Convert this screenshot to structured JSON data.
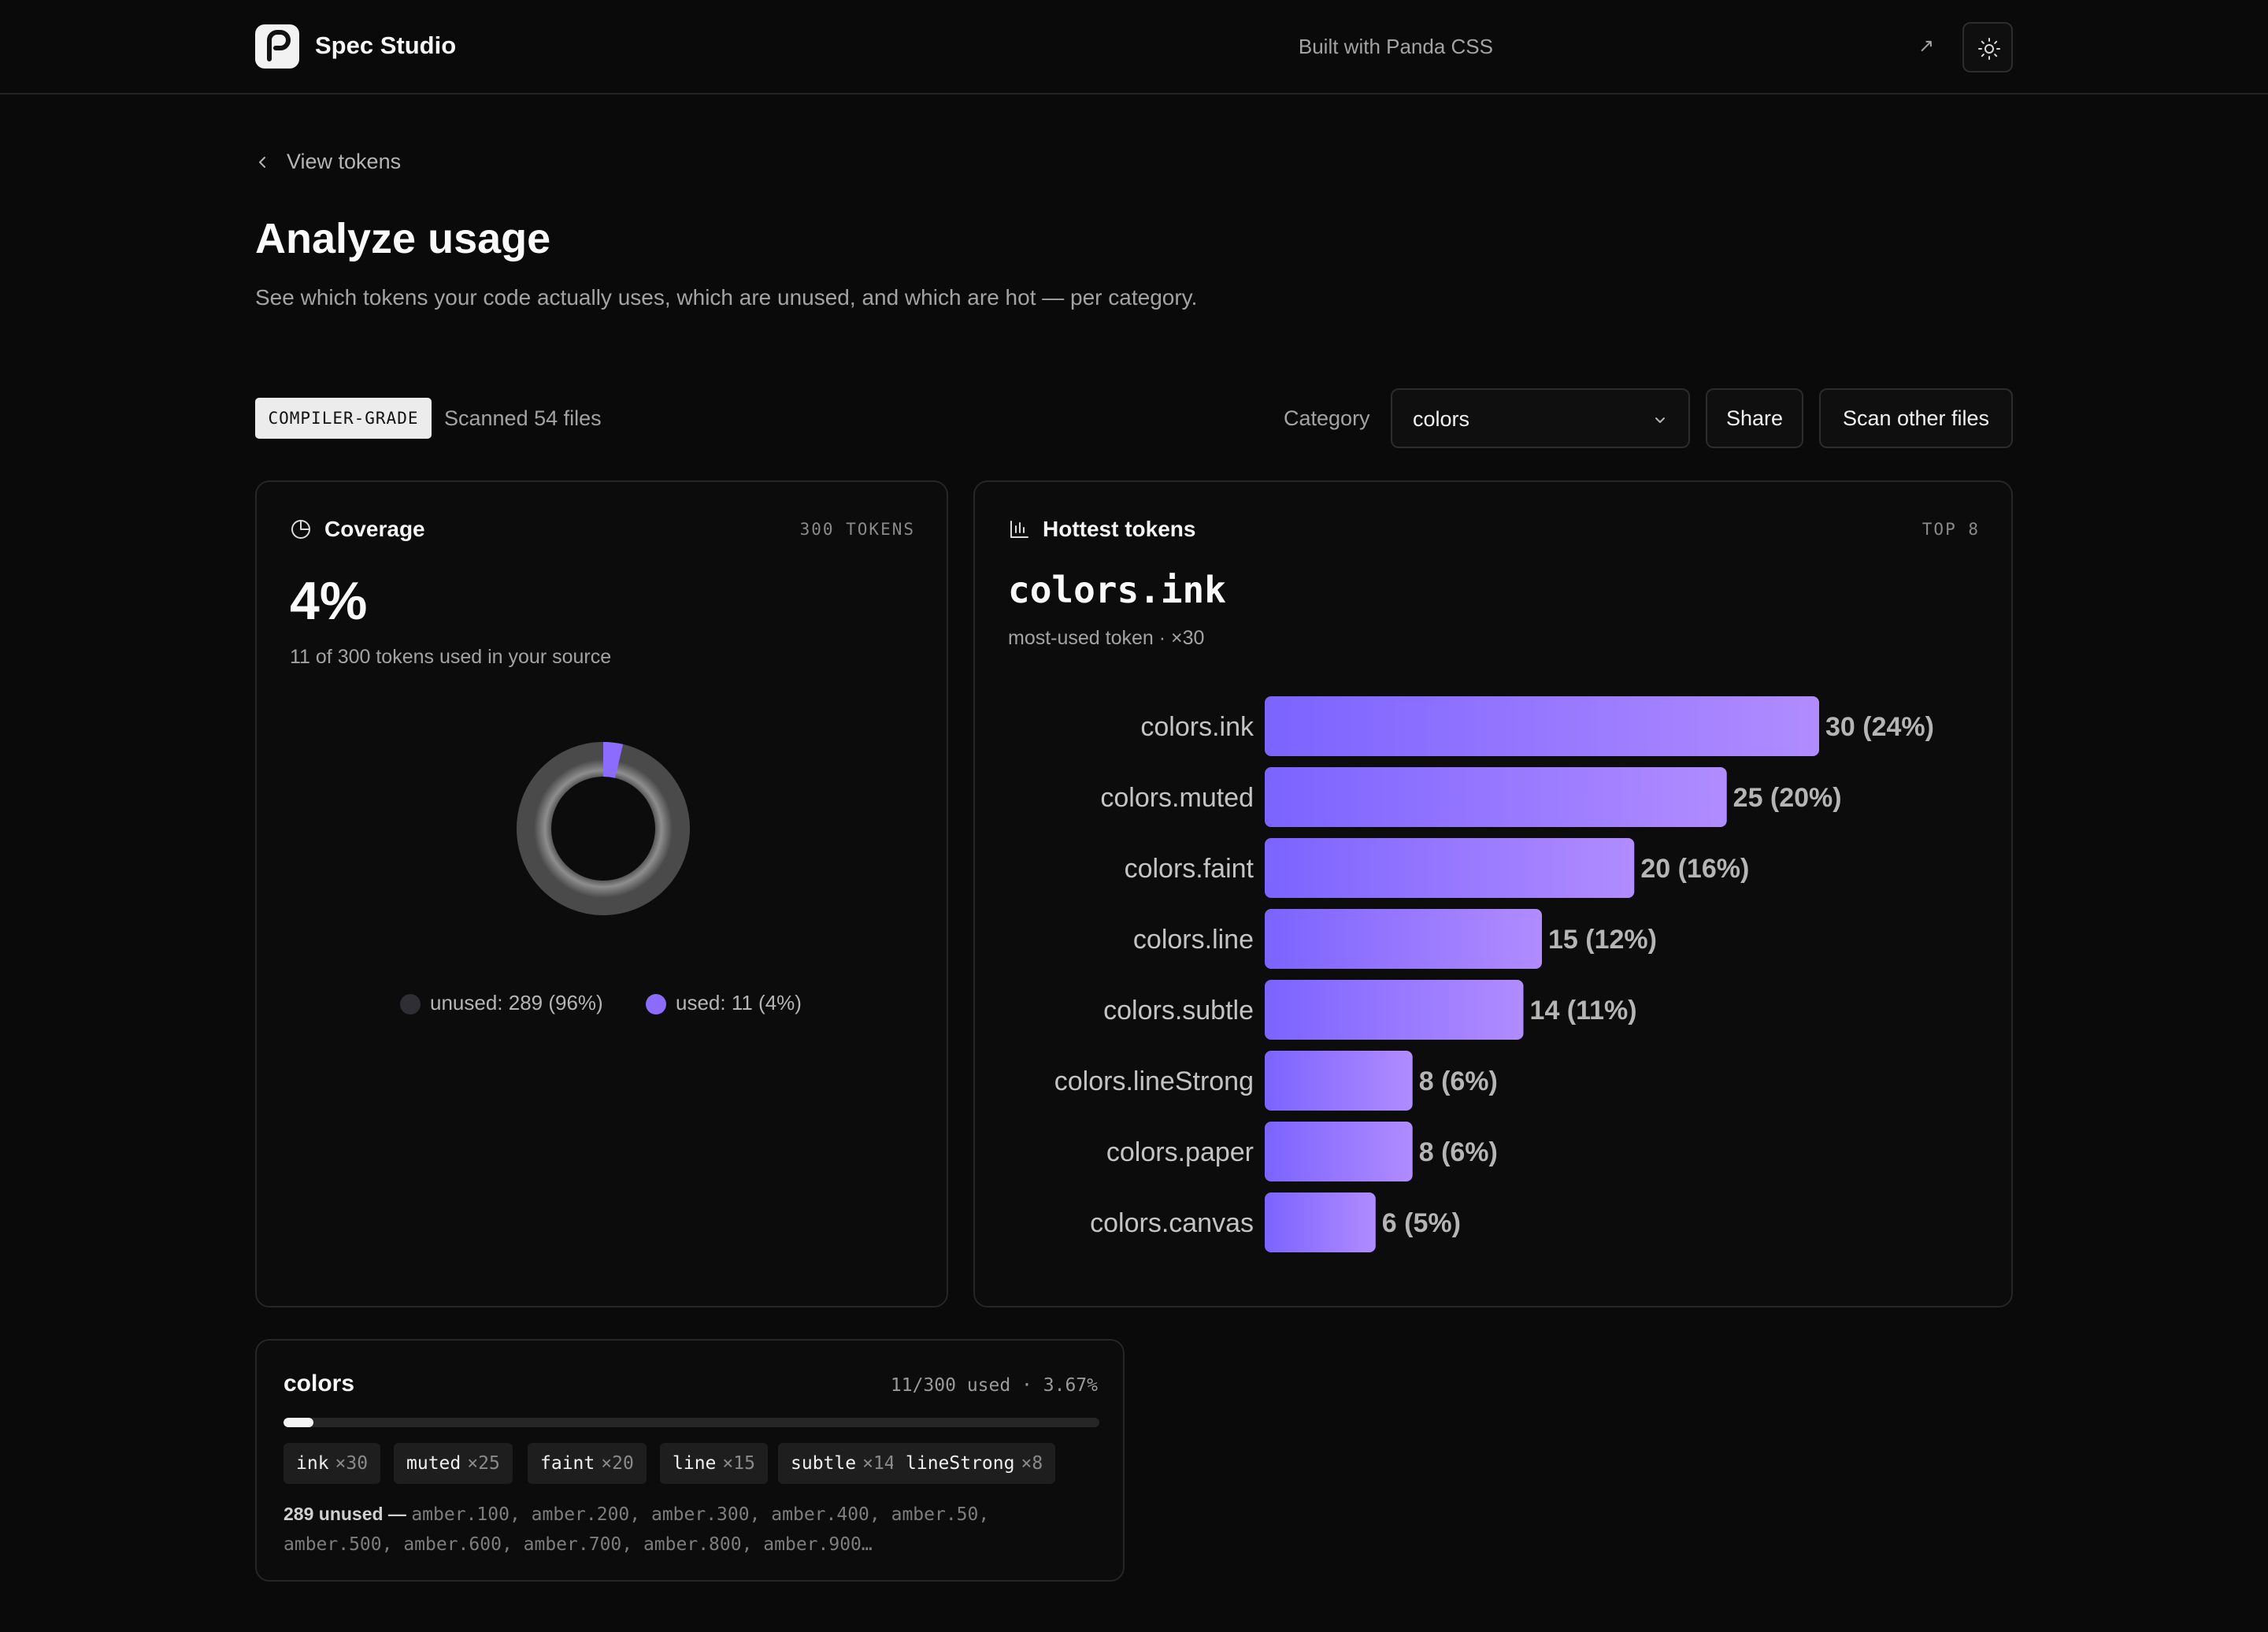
{
  "app": {
    "name": "Spec Studio",
    "built_with": "Built with Panda CSS",
    "built_arrow": "↗"
  },
  "nav": {
    "back_label": "View tokens"
  },
  "page": {
    "title": "Analyze usage",
    "subtitle": "See which tokens your code actually uses, which are unused, and which are hot — per category."
  },
  "controls": {
    "badge": "COMPILER-GRADE",
    "scanned": "Scanned 54 files",
    "category_label": "Category",
    "category_value": "colors",
    "share_label": "Share",
    "scan_label": "Scan other files"
  },
  "coverage": {
    "title": "Coverage",
    "meta": "300 TOKENS",
    "percent": "4%",
    "subtitle": "11 of 300 tokens used in your source",
    "used_fraction": 0.0367,
    "legend_unused": "unused: 289 (96%)",
    "legend_used": "used: 11 (4%)",
    "colors": {
      "used": "#8b6cff",
      "unused": "#6b6b6b"
    }
  },
  "hottest": {
    "title": "Hottest tokens",
    "meta": "TOP 8",
    "top_token": "colors.ink",
    "top_sub": "most-used token · ×30"
  },
  "chart_data": {
    "type": "bar",
    "orientation": "horizontal",
    "categories": [
      "colors.ink",
      "colors.muted",
      "colors.faint",
      "colors.line",
      "colors.subtle",
      "colors.lineStrong",
      "colors.paper",
      "colors.canvas"
    ],
    "values": [
      30,
      25,
      20,
      15,
      14,
      8,
      8,
      6
    ],
    "labels": [
      "30 (24%)",
      "25 (20%)",
      "20 (16%)",
      "15 (12%)",
      "14 (11%)",
      "8 (6%)",
      "8 (6%)",
      "6 (5%)"
    ],
    "xlim": [
      0,
      30
    ],
    "grid": false,
    "gradient": [
      "#7b63ff",
      "#b18cff"
    ]
  },
  "category_card": {
    "name": "colors",
    "meta": "11/300 used · 3.67%",
    "used_fraction": 0.0367,
    "chips": [
      {
        "name": "ink",
        "count": "×30"
      },
      {
        "name": "muted",
        "count": "×25"
      },
      {
        "name": "faint",
        "count": "×20"
      },
      {
        "name": "line",
        "count": "×15"
      },
      {
        "name": "subtle",
        "count": "×14"
      },
      {
        "name": "lineStrong",
        "count": "×8"
      }
    ],
    "unused_label": "289 unused —",
    "unused_list": "amber.100, amber.200, amber.300, amber.400, amber.50, amber.500, amber.600, amber.700, amber.800, amber.900…"
  }
}
